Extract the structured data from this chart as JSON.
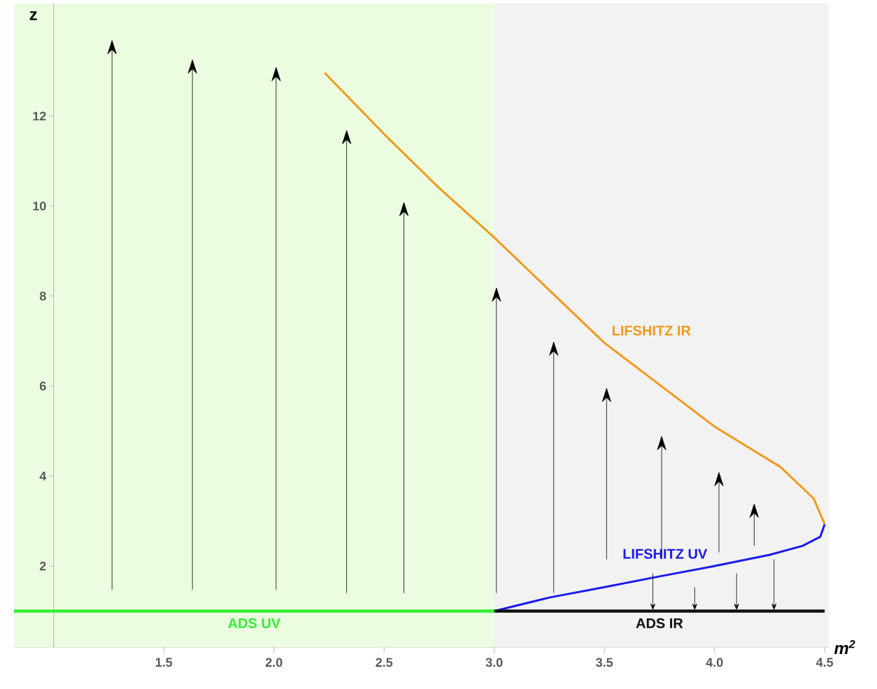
{
  "chart_data": {
    "type": "line",
    "xlabel": "m$^{2}$",
    "ylabel": "z",
    "xlim": [
      0.82,
      4.52
    ],
    "ylim": [
      0.2,
      14.5
    ],
    "xticks": [
      1.5,
      {
        "value": 2,
        "label": "2.0"
      },
      2.5,
      {
        "value": 3,
        "label": "3.0"
      },
      3.5,
      {
        "value": 4,
        "label": "4.0"
      },
      4.5
    ],
    "yticks": [
      2,
      4,
      6,
      8,
      10,
      12
    ],
    "bands": [
      {
        "axis": "x",
        "from": 0.82,
        "to": 3.0,
        "color": "#ebfce0"
      },
      {
        "axis": "x",
        "from": 3.0,
        "to": 4.52,
        "color": "#f2f2f2"
      }
    ],
    "series": [
      {
        "name": "LIFSHITZ IR",
        "color": "#f09a1c",
        "x": [
          2.23,
          2.5,
          2.75,
          3.0,
          3.5,
          4.0,
          4.3,
          4.45,
          4.5
        ],
        "values": [
          12.96,
          11.6,
          10.4,
          9.3,
          6.96,
          5.1,
          4.2,
          3.5,
          2.93
        ]
      },
      {
        "name": "LIFSHITZ UV",
        "color": "#1a1aee",
        "x": [
          3.0,
          3.25,
          3.5,
          3.75,
          4.0,
          4.25,
          4.4,
          4.48,
          4.5
        ],
        "values": [
          1.0,
          1.3,
          1.53,
          1.77,
          2.0,
          2.25,
          2.45,
          2.65,
          2.93
        ]
      },
      {
        "name": "ADS UV",
        "color": "#33ee33",
        "x": [
          0.82,
          3.0
        ],
        "values": [
          1.0,
          1.0
        ]
      },
      {
        "name": "ADS IR",
        "color": "#111111",
        "x": [
          3.0,
          4.5
        ],
        "values": [
          1.0,
          1.0
        ]
      }
    ]
  }
}
